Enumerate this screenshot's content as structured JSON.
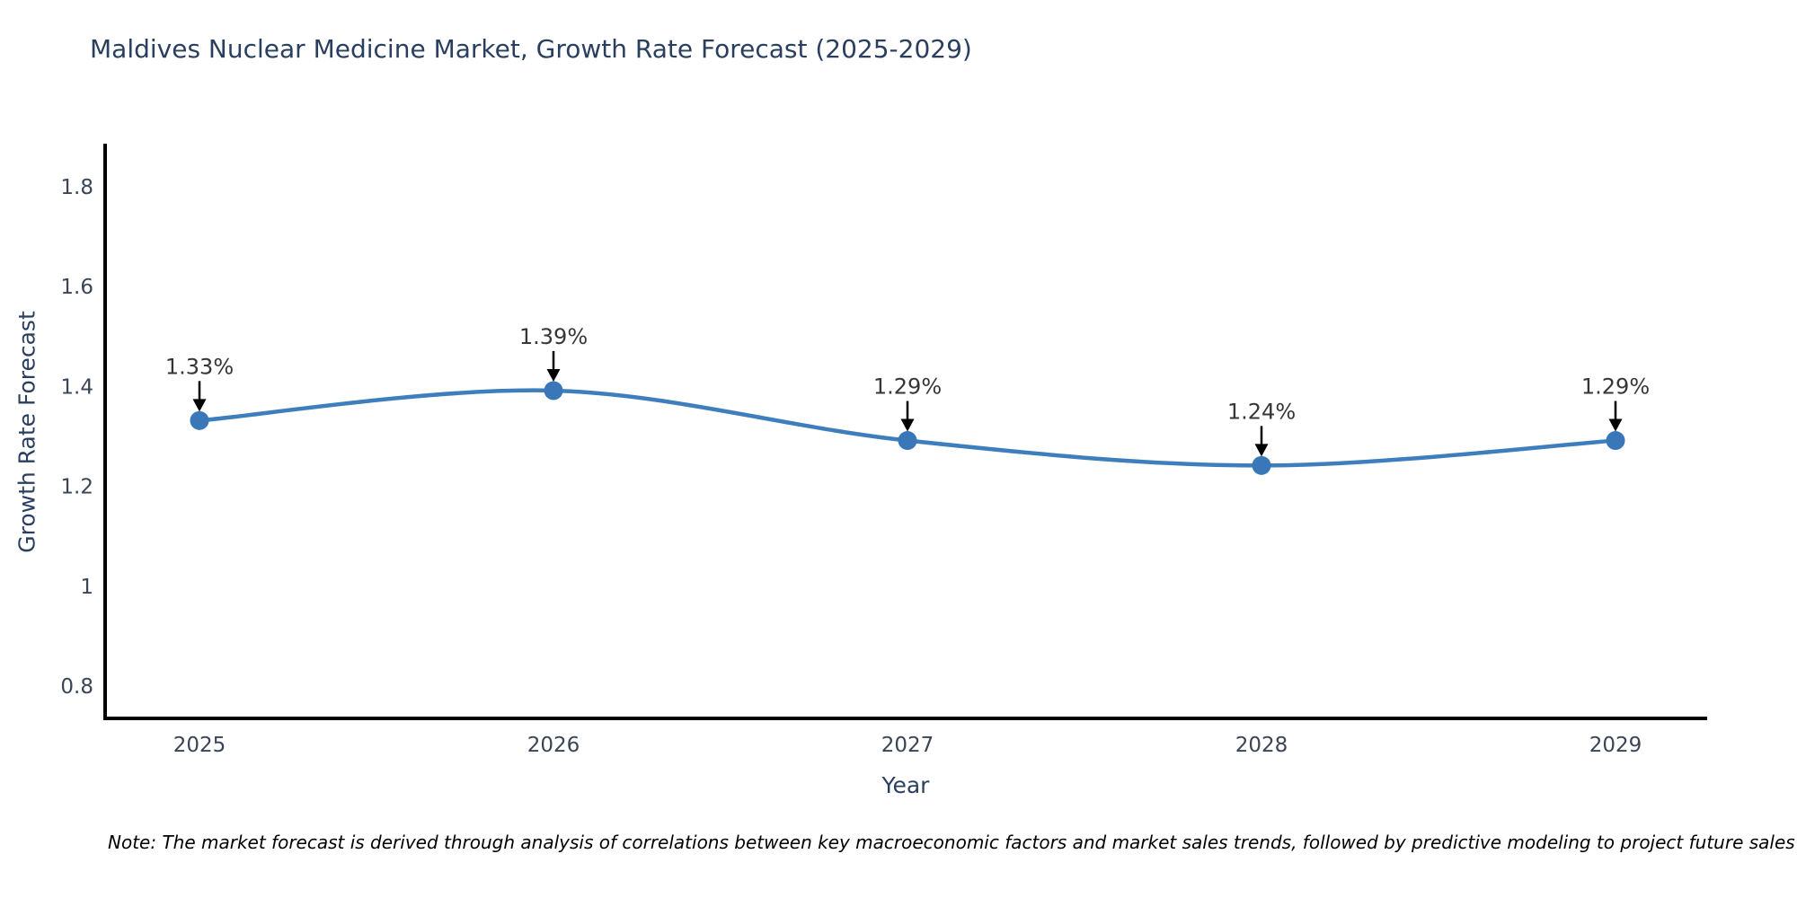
{
  "title": "Maldives Nuclear Medicine Market, Growth Rate Forecast (2025-2029)",
  "note": "Note: The market forecast is derived through analysis of correlations between key macroeconomic factors and market sales trends, followed by predictive modeling to project future sales",
  "chart_data": {
    "type": "line",
    "title": "Maldives Nuclear Medicine Market, Growth Rate Forecast (2025-2029)",
    "categories": [
      "2025",
      "2026",
      "2027",
      "2028",
      "2029"
    ],
    "series": [
      {
        "name": "Growth Rate Forecast",
        "values": [
          1.33,
          1.39,
          1.29,
          1.24,
          1.29
        ]
      }
    ],
    "point_labels": [
      "1.33%",
      "1.39%",
      "1.29%",
      "1.24%",
      "1.29%"
    ],
    "xlabel": "Year",
    "ylabel": "Growth Rate Forecast",
    "yticks": [
      0.8,
      1,
      1.2,
      1.4,
      1.6,
      1.8
    ],
    "ytick_labels": [
      "0.8",
      "1",
      "1.2",
      "1.4",
      "1.6",
      "1.8"
    ],
    "ylim": [
      0.735,
      1.885
    ],
    "grid": false,
    "legend_position": "none",
    "curve": "spline",
    "colors": {
      "line": "#3f7ebd",
      "marker": "#3a77b8",
      "axis": "#000000",
      "tick_text": "#3a4556",
      "title_text": "#2a3f5f",
      "annotation_text": "#363636",
      "annotation_arrow": "#000000"
    }
  }
}
